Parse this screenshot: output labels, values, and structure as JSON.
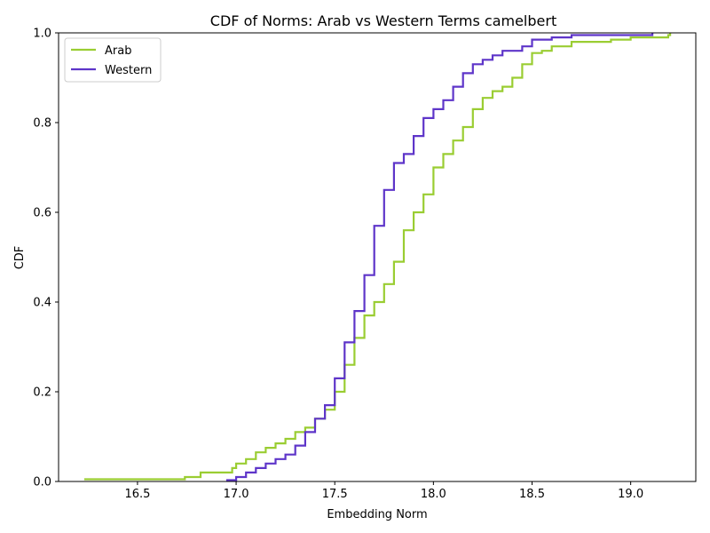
{
  "chart_data": {
    "type": "line",
    "title": "CDF of Norms: Arab vs Western Terms camelbert",
    "xlabel": "Embedding Norm",
    "ylabel": "CDF",
    "xlim": [
      16.1,
      19.33
    ],
    "ylim": [
      0.0,
      1.0
    ],
    "x_ticks": [
      16.5,
      17.0,
      17.5,
      18.0,
      18.5,
      19.0
    ],
    "x_tick_labels": [
      "16.5",
      "17.0",
      "17.5",
      "18.0",
      "18.5",
      "19.0"
    ],
    "y_ticks": [
      0.0,
      0.2,
      0.4,
      0.6,
      0.8,
      1.0
    ],
    "y_tick_labels": [
      "0.0",
      "0.2",
      "0.4",
      "0.6",
      "0.8",
      "1.0"
    ],
    "grid": false,
    "legend_position": "top-left",
    "series": [
      {
        "name": "Arab",
        "color": "#9ACD32",
        "points": [
          [
            16.23,
            0.005
          ],
          [
            16.74,
            0.005
          ],
          [
            16.74,
            0.01
          ],
          [
            16.82,
            0.01
          ],
          [
            16.82,
            0.02
          ],
          [
            16.95,
            0.02
          ],
          [
            16.98,
            0.03
          ],
          [
            17.0,
            0.04
          ],
          [
            17.05,
            0.05
          ],
          [
            17.1,
            0.065
          ],
          [
            17.15,
            0.075
          ],
          [
            17.2,
            0.085
          ],
          [
            17.25,
            0.095
          ],
          [
            17.3,
            0.11
          ],
          [
            17.35,
            0.12
          ],
          [
            17.4,
            0.14
          ],
          [
            17.45,
            0.16
          ],
          [
            17.5,
            0.2
          ],
          [
            17.55,
            0.26
          ],
          [
            17.6,
            0.32
          ],
          [
            17.65,
            0.37
          ],
          [
            17.7,
            0.4
          ],
          [
            17.75,
            0.44
          ],
          [
            17.8,
            0.49
          ],
          [
            17.85,
            0.56
          ],
          [
            17.9,
            0.6
          ],
          [
            17.95,
            0.64
          ],
          [
            18.0,
            0.7
          ],
          [
            18.05,
            0.73
          ],
          [
            18.1,
            0.76
          ],
          [
            18.15,
            0.79
          ],
          [
            18.2,
            0.83
          ],
          [
            18.25,
            0.855
          ],
          [
            18.3,
            0.87
          ],
          [
            18.35,
            0.88
          ],
          [
            18.4,
            0.9
          ],
          [
            18.45,
            0.93
          ],
          [
            18.5,
            0.955
          ],
          [
            18.55,
            0.96
          ],
          [
            18.6,
            0.97
          ],
          [
            18.7,
            0.98
          ],
          [
            18.9,
            0.985
          ],
          [
            19.0,
            0.99
          ],
          [
            19.19,
            0.995
          ],
          [
            19.2,
            1.0
          ]
        ]
      },
      {
        "name": "Western",
        "color": "#5E35C9",
        "points": [
          [
            16.95,
            0.003
          ],
          [
            17.0,
            0.01
          ],
          [
            17.05,
            0.02
          ],
          [
            17.1,
            0.03
          ],
          [
            17.15,
            0.04
          ],
          [
            17.2,
            0.05
          ],
          [
            17.25,
            0.06
          ],
          [
            17.3,
            0.08
          ],
          [
            17.35,
            0.11
          ],
          [
            17.4,
            0.14
          ],
          [
            17.45,
            0.17
          ],
          [
            17.5,
            0.23
          ],
          [
            17.55,
            0.31
          ],
          [
            17.6,
            0.38
          ],
          [
            17.65,
            0.46
          ],
          [
            17.7,
            0.57
          ],
          [
            17.75,
            0.65
          ],
          [
            17.8,
            0.71
          ],
          [
            17.85,
            0.73
          ],
          [
            17.9,
            0.77
          ],
          [
            17.95,
            0.81
          ],
          [
            18.0,
            0.83
          ],
          [
            18.05,
            0.85
          ],
          [
            18.1,
            0.88
          ],
          [
            18.15,
            0.91
          ],
          [
            18.2,
            0.93
          ],
          [
            18.25,
            0.94
          ],
          [
            18.3,
            0.95
          ],
          [
            18.35,
            0.96
          ],
          [
            18.45,
            0.97
          ],
          [
            18.5,
            0.985
          ],
          [
            18.6,
            0.99
          ],
          [
            18.7,
            0.995
          ],
          [
            19.11,
            1.0
          ]
        ]
      }
    ]
  }
}
